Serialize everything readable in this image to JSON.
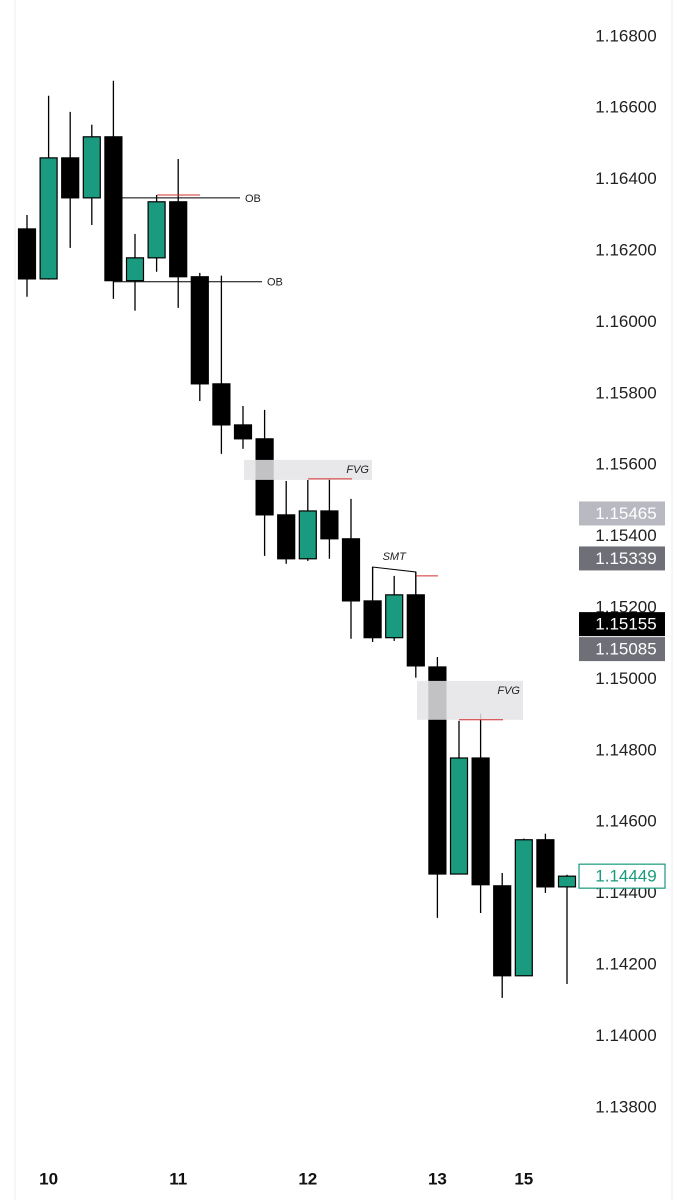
{
  "chart_data": {
    "type": "candlestick",
    "categories": [
      null,
      "10",
      null,
      null,
      null,
      null,
      null,
      "11",
      null,
      null,
      null,
      null,
      null,
      "12",
      null,
      null,
      null,
      null,
      null,
      "13",
      null,
      null,
      null,
      "15",
      null,
      null
    ],
    "open": [
      1.16262,
      1.16122,
      1.16461,
      1.16349,
      1.1652,
      1.16117,
      1.16181,
      1.16338,
      1.16128,
      1.15828,
      1.15713,
      1.15674,
      1.15461,
      1.15338,
      1.15472,
      1.15394,
      1.1522,
      1.15117,
      1.15237,
      1.15035,
      1.14455,
      1.1478,
      1.14422,
      1.1417,
      1.14551,
      1.14419
    ],
    "high": [
      1.16301,
      1.16635,
      1.1659,
      1.16554,
      1.16677,
      1.16248,
      1.16357,
      1.16458,
      1.16139,
      1.16131,
      1.15766,
      1.15755,
      1.15556,
      1.15559,
      1.15562,
      1.15506,
      1.15315,
      1.1529,
      1.15301,
      1.15063,
      1.14884,
      1.14904,
      1.14458,
      1.14554,
      1.14568,
      1.14453
    ],
    "low": [
      1.16072,
      1.1612,
      1.16209,
      1.16273,
      1.16066,
      1.16033,
      1.16142,
      1.16041,
      1.1578,
      1.15632,
      1.15646,
      1.15346,
      1.15324,
      1.15332,
      1.15338,
      1.15114,
      1.15105,
      1.15108,
      1.15005,
      1.14332,
      1.14455,
      1.14346,
      1.14108,
      1.1417,
      1.14402,
      1.14147
    ],
    "close": [
      1.16122,
      1.16461,
      1.16349,
      1.1652,
      1.16117,
      1.16181,
      1.16338,
      1.16128,
      1.15828,
      1.15713,
      1.15674,
      1.15461,
      1.15338,
      1.15472,
      1.15394,
      1.1522,
      1.15117,
      1.15237,
      1.15038,
      1.14455,
      1.1478,
      1.14425,
      1.1417,
      1.14551,
      1.14419,
      1.14449
    ],
    "up_color": "#1a9a7e",
    "down_color": "#000000",
    "ylim": [
      1.13752,
      1.16864
    ],
    "yticks": [
      {
        "value": 1.168,
        "label": "1.16800"
      },
      {
        "value": 1.166,
        "label": "1.16600"
      },
      {
        "value": 1.164,
        "label": "1.16400"
      },
      {
        "value": 1.162,
        "label": "1.16200"
      },
      {
        "value": 1.16,
        "label": "1.16000"
      },
      {
        "value": 1.158,
        "label": "1.15800"
      },
      {
        "value": 1.156,
        "label": "1.15600"
      },
      {
        "value": 1.154,
        "label": "1.15400"
      },
      {
        "value": 1.152,
        "label": "1.15200"
      },
      {
        "value": 1.15,
        "label": "1.15000"
      },
      {
        "value": 1.148,
        "label": "1.14800"
      },
      {
        "value": 1.146,
        "label": "1.14600"
      },
      {
        "value": 1.144,
        "label": "1.14400"
      },
      {
        "value": 1.142,
        "label": "1.14200"
      },
      {
        "value": 1.14,
        "label": "1.14000"
      },
      {
        "value": 1.138,
        "label": "1.13800"
      }
    ],
    "price_labels": [
      {
        "value": 1.15465,
        "color": "#b9b9c1"
      },
      {
        "value": 1.15339,
        "color": "#6f6f78"
      },
      {
        "value": 1.15155,
        "color": "#000000"
      },
      {
        "value": 1.15085,
        "color": "#6f6f78"
      },
      {
        "value": 1.14449,
        "color": "#1a9a7e"
      }
    ],
    "annotations": [
      {
        "type": "ob",
        "text": "OB",
        "level": 1.16349
      },
      {
        "type": "ob",
        "text": "OB",
        "level": 1.16114
      },
      {
        "type": "fvg",
        "text": "FVG",
        "range": [
          1.15559,
          1.15615
        ]
      },
      {
        "type": "smt",
        "text": "SMT"
      },
      {
        "type": "fvg",
        "text": "FVG",
        "range": [
          1.14887,
          1.14996
        ]
      }
    ],
    "red_levels": [
      1.16357,
      1.15562,
      1.1529,
      1.14887
    ]
  }
}
